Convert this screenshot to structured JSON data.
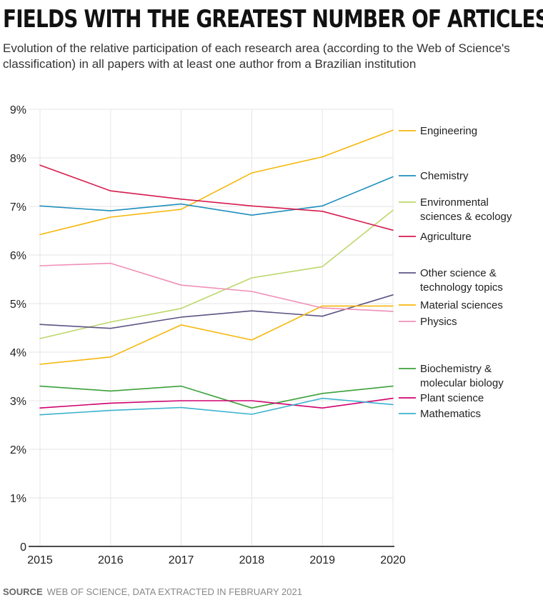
{
  "title": "FIELDS WITH THE GREATEST NUMBER OF ARTICLES",
  "subtitle": "Evolution of the relative participation of each research area (according to the Web of Science's classification) in all papers with at least one author from a Brazilian institution",
  "source": {
    "label": "SOURCE",
    "text": "WEB OF SCIENCE, DATA EXTRACTED IN FEBRUARY 2021"
  },
  "chart_data": {
    "type": "line",
    "title": "FIELDS WITH THE GREATEST NUMBER OF ARTICLES",
    "xlabel": "",
    "ylabel": "",
    "x": [
      2015,
      2016,
      2017,
      2018,
      2019,
      2020
    ],
    "ylim": [
      0,
      9
    ],
    "yticks": [
      {
        "value": 0,
        "label": "0"
      },
      {
        "value": 1,
        "label": "1%"
      },
      {
        "value": 2,
        "label": "2%"
      },
      {
        "value": 3,
        "label": "3%"
      },
      {
        "value": 4,
        "label": "4%"
      },
      {
        "value": 5,
        "label": "5%"
      },
      {
        "value": 6,
        "label": "6%"
      },
      {
        "value": 7,
        "label": "7%"
      },
      {
        "value": 8,
        "label": "8%"
      },
      {
        "value": 9,
        "label": "9%"
      }
    ],
    "grid": true,
    "legend_placement": "right",
    "series": [
      {
        "name": "Engineering",
        "color": "#f6b70b",
        "values": [
          6.42,
          6.78,
          6.94,
          7.69,
          8.02,
          8.57
        ]
      },
      {
        "name": "Chemistry",
        "color": "#1f8ebc",
        "values": [
          7.01,
          6.91,
          7.05,
          6.82,
          7.01,
          7.61
        ]
      },
      {
        "name": "Environmental sciences & ecology",
        "color": "#bdd76b",
        "values": [
          4.28,
          4.62,
          4.9,
          5.53,
          5.76,
          6.92
        ]
      },
      {
        "name": "Agriculture",
        "color": "#d61c4e",
        "values": [
          7.85,
          7.32,
          7.15,
          7.01,
          6.9,
          6.51
        ]
      },
      {
        "name": "Other science & technology topics",
        "color": "#5c5484",
        "values": [
          4.57,
          4.49,
          4.72,
          4.85,
          4.74,
          5.18
        ]
      },
      {
        "name": "Material sciences",
        "color": "#f6b70b",
        "values": [
          3.75,
          3.9,
          4.56,
          4.25,
          4.95,
          4.95
        ]
      },
      {
        "name": "Physics",
        "color": "#ef8fb6",
        "values": [
          5.78,
          5.83,
          5.38,
          5.25,
          4.91,
          4.84
        ]
      },
      {
        "name": "Biochemistry & molecular biology",
        "color": "#3ba03a",
        "values": [
          3.3,
          3.2,
          3.3,
          2.85,
          3.15,
          3.3
        ]
      },
      {
        "name": "Plant science",
        "color": "#d1006f",
        "values": [
          2.85,
          2.95,
          3.0,
          3.0,
          2.85,
          3.05
        ]
      },
      {
        "name": "Mathematics",
        "color": "#39b1cf",
        "values": [
          2.71,
          2.8,
          2.86,
          2.72,
          3.05,
          2.92
        ]
      }
    ]
  }
}
